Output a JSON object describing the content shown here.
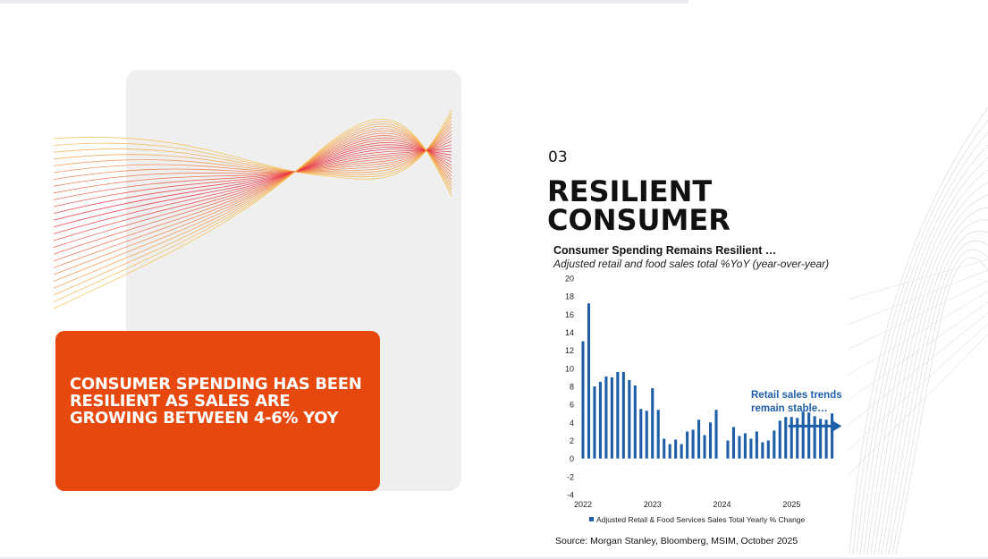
{
  "section_number": "03",
  "heading_line1": "RESILIENT",
  "heading_line2": "CONSUMER",
  "callout_text": "CONSUMER SPENDING HAS BEEN RESILIENT AS SALES ARE GROWING BETWEEN 4-6% YOY",
  "source": "Source: Morgan Stanley, Bloomberg, MSIM, October 2025",
  "colors": {
    "accent": "#e6480d",
    "bar": "#1f5fa9",
    "annotation": "#1f5fa9"
  },
  "chart_data": {
    "type": "bar",
    "title": "Consumer Spending Remains Resilient …",
    "subtitle": "Adjusted retail and food sales total %YoY (year-over-year)",
    "ylim": [
      -4,
      20
    ],
    "yticks": [
      20,
      18,
      16,
      14,
      12,
      10,
      8,
      6,
      4,
      2,
      0,
      -2,
      -4
    ],
    "xlim": [
      2022,
      2025.78
    ],
    "xticks": [
      {
        "label": "2022",
        "x": 2022
      },
      {
        "label": "2023",
        "x": 2023
      },
      {
        "label": "2024",
        "x": 2024
      },
      {
        "label": "2025",
        "x": 2025
      }
    ],
    "series": [
      {
        "name": "Adjusted Retail & Food Services Sales Total Yearly % Change",
        "x_start": 2022,
        "x_step": 0.0833,
        "values": [
          13.0,
          17.2,
          8.0,
          8.5,
          9.1,
          9.0,
          9.6,
          9.6,
          8.7,
          8.1,
          5.5,
          5.3,
          7.8,
          5.4,
          2.2,
          1.6,
          2.1,
          1.6,
          3.0,
          3.2,
          4.3,
          2.6,
          4.0,
          5.4,
          null,
          2.0,
          3.5,
          2.5,
          2.8,
          2.2,
          3.0,
          1.8,
          2.0,
          3.1,
          4.2,
          4.6,
          4.6,
          4.5,
          5.2,
          5.1,
          4.7,
          4.4,
          4.3,
          5.0
        ]
      }
    ],
    "annotation_line1": "Retail sales trends",
    "annotation_line2": "remain stable…",
    "annotation_arrow": {
      "x_from": 2024.98,
      "x_to": 2025.72,
      "y": 3.6
    },
    "legend": "Adjusted Retail & Food Services Sales Total Yearly % Change"
  }
}
